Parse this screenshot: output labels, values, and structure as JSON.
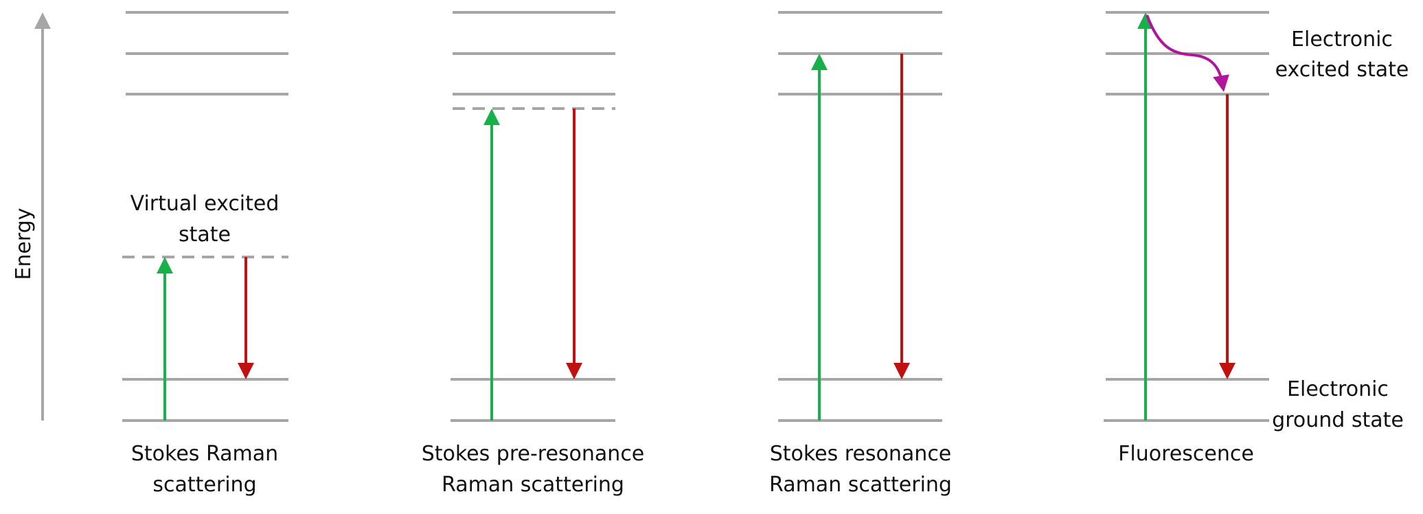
{
  "axis": {
    "label": "Energy"
  },
  "colors": {
    "level_line": "#a6a6a6",
    "excitation_arrow": "#18b04a",
    "emission_arrow": "#c01010",
    "relaxation_arrow": "#b0159c",
    "text": "#111111",
    "background": "#ffffff"
  },
  "panels": [
    {
      "id": "stokes-raman",
      "caption": [
        "Stokes Raman",
        "scattering"
      ],
      "state_label": [
        "Virtual excited",
        "state"
      ]
    },
    {
      "id": "stokes-pre-resonance",
      "caption": [
        "Stokes pre-resonance",
        "Raman scattering"
      ]
    },
    {
      "id": "stokes-resonance",
      "caption": [
        "Stokes resonance",
        "Raman scattering"
      ]
    },
    {
      "id": "fluorescence",
      "caption": [
        "Fluorescence"
      ]
    }
  ],
  "side_labels": {
    "excited": [
      "Electronic",
      "excited state"
    ],
    "ground": [
      "Electronic",
      "ground state"
    ]
  }
}
